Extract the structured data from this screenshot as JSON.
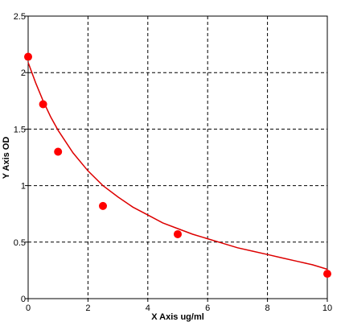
{
  "chart_data": {
    "type": "scatter",
    "title": "",
    "xlabel": "X Axis ug/ml",
    "ylabel": "Y Axis OD",
    "xlim": [
      0,
      10
    ],
    "ylim": [
      0,
      2.5
    ],
    "grid": true,
    "x_ticks": [
      "0",
      "2",
      "4",
      "6",
      "8",
      "10"
    ],
    "y_ticks": [
      "0",
      "0.5",
      "1",
      "1.5",
      "2",
      "2.5"
    ],
    "x_tick_values": [
      0,
      2,
      4,
      6,
      8,
      10
    ],
    "y_tick_values": [
      0,
      0.5,
      1,
      1.5,
      2,
      2.5
    ],
    "points": [
      {
        "x": 0,
        "y": 2.14
      },
      {
        "x": 0.5,
        "y": 1.72
      },
      {
        "x": 1,
        "y": 1.3
      },
      {
        "x": 2.5,
        "y": 0.82
      },
      {
        "x": 5,
        "y": 0.57
      },
      {
        "x": 10,
        "y": 0.22
      }
    ],
    "fit_curve": {
      "type": "line",
      "x": [
        0,
        0.25,
        0.5,
        0.75,
        1,
        1.5,
        2,
        2.5,
        3,
        3.5,
        4,
        4.5,
        5,
        5.5,
        6,
        6.5,
        7,
        7.5,
        8,
        8.5,
        9,
        9.5,
        10
      ],
      "y": [
        2.09,
        1.91,
        1.75,
        1.61,
        1.49,
        1.29,
        1.13,
        1.0,
        0.9,
        0.81,
        0.74,
        0.67,
        0.62,
        0.57,
        0.53,
        0.49,
        0.45,
        0.42,
        0.39,
        0.36,
        0.33,
        0.3,
        0.26
      ]
    },
    "colors": {
      "points": "#ff0000",
      "curve": "#dd0000",
      "grid": "#000000",
      "axes": "#000000"
    }
  }
}
